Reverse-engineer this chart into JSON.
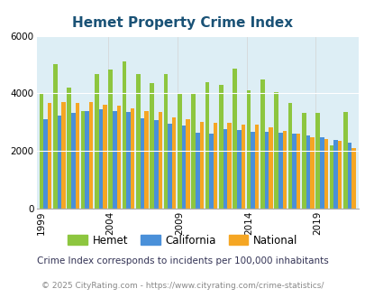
{
  "title": "Hemet Property Crime Index",
  "years": [
    1999,
    2000,
    2001,
    2002,
    2003,
    2004,
    2005,
    2006,
    2007,
    2008,
    2009,
    2010,
    2011,
    2012,
    2013,
    2014,
    2015,
    2016,
    2017,
    2018,
    2019,
    2020,
    2021
  ],
  "hemet": [
    4020,
    5020,
    4200,
    3370,
    4680,
    4820,
    5120,
    4680,
    4370,
    4680,
    3980,
    3980,
    4390,
    4310,
    4870,
    4120,
    4480,
    4050,
    3660,
    3310,
    3310,
    2210,
    3350
  ],
  "california": [
    3100,
    3240,
    3310,
    3390,
    3440,
    3380,
    3350,
    3130,
    3060,
    2940,
    2890,
    2640,
    2590,
    2750,
    2720,
    2680,
    2680,
    2640,
    2590,
    2540,
    2480,
    2380,
    2290
  ],
  "national": [
    3660,
    3700,
    3660,
    3700,
    3620,
    3560,
    3470,
    3380,
    3340,
    3170,
    3100,
    3020,
    2990,
    2970,
    2930,
    2900,
    2810,
    2710,
    2610,
    2490,
    2400,
    2360,
    2110
  ],
  "hemet_color": "#8dc63f",
  "california_color": "#4a90d9",
  "national_color": "#f5a623",
  "bg_color": "#ddeef5",
  "ylim": [
    0,
    6000
  ],
  "ylabel_ticks": [
    0,
    2000,
    4000,
    6000
  ],
  "xtick_years": [
    1999,
    2004,
    2009,
    2014,
    2019
  ],
  "title_color": "#1a5276",
  "subtitle": "Crime Index corresponds to incidents per 100,000 inhabitants",
  "footer": "© 2025 CityRating.com - https://www.cityrating.com/crime-statistics/",
  "subtitle_color": "#333355",
  "footer_color": "#888888"
}
